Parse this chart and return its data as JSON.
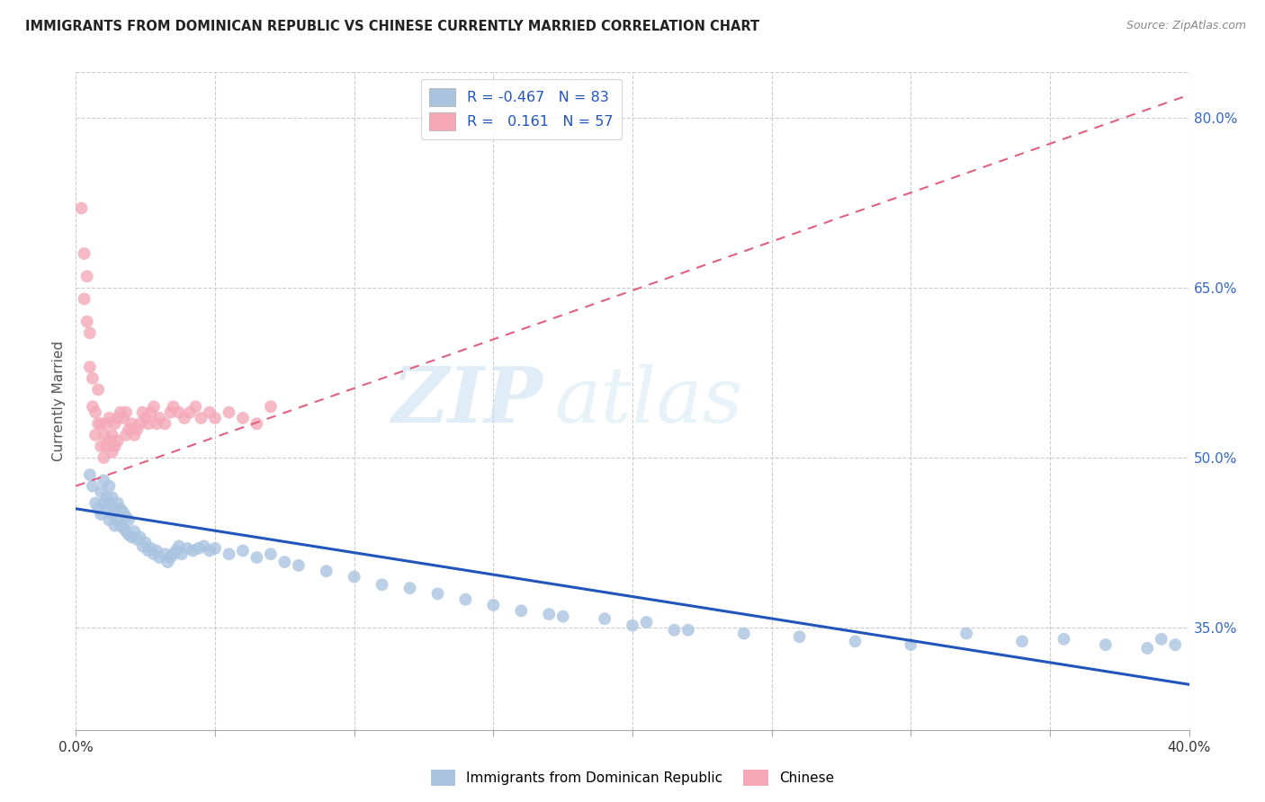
{
  "title": "IMMIGRANTS FROM DOMINICAN REPUBLIC VS CHINESE CURRENTLY MARRIED CORRELATION CHART",
  "source": "Source: ZipAtlas.com",
  "ylabel": "Currently Married",
  "right_yticks": [
    0.35,
    0.5,
    0.65,
    0.8
  ],
  "right_yticklabels": [
    "35.0%",
    "50.0%",
    "65.0%",
    "80.0%"
  ],
  "xmin": 0.0,
  "xmax": 0.4,
  "ymin": 0.26,
  "ymax": 0.84,
  "blue_R": -0.467,
  "blue_N": 83,
  "pink_R": 0.161,
  "pink_N": 57,
  "blue_color": "#aac4e0",
  "pink_color": "#f4a8b8",
  "blue_line_color": "#2255bb",
  "pink_line_color": "#e06080",
  "legend_label_blue": "Immigrants from Dominican Republic",
  "legend_label_pink": "Chinese",
  "watermark_zip": "ZIP",
  "watermark_atlas": "atlas",
  "grid_color": "#cccccc",
  "background_color": "#ffffff",
  "blue_scatter_x": [
    0.005,
    0.006,
    0.007,
    0.008,
    0.009,
    0.009,
    0.01,
    0.01,
    0.011,
    0.011,
    0.012,
    0.012,
    0.012,
    0.013,
    0.013,
    0.014,
    0.014,
    0.015,
    0.015,
    0.016,
    0.016,
    0.017,
    0.017,
    0.018,
    0.018,
    0.019,
    0.019,
    0.02,
    0.021,
    0.022,
    0.023,
    0.024,
    0.025,
    0.026,
    0.027,
    0.028,
    0.029,
    0.03,
    0.032,
    0.033,
    0.034,
    0.035,
    0.036,
    0.037,
    0.038,
    0.04,
    0.042,
    0.044,
    0.046,
    0.048,
    0.05,
    0.055,
    0.06,
    0.065,
    0.07,
    0.075,
    0.08,
    0.09,
    0.1,
    0.11,
    0.12,
    0.13,
    0.14,
    0.15,
    0.16,
    0.175,
    0.19,
    0.205,
    0.22,
    0.24,
    0.26,
    0.28,
    0.3,
    0.32,
    0.34,
    0.355,
    0.37,
    0.385,
    0.39,
    0.395,
    0.2,
    0.17,
    0.215
  ],
  "blue_scatter_y": [
    0.485,
    0.475,
    0.46,
    0.455,
    0.45,
    0.47,
    0.46,
    0.48,
    0.465,
    0.455,
    0.445,
    0.46,
    0.475,
    0.45,
    0.465,
    0.44,
    0.455,
    0.445,
    0.46,
    0.44,
    0.455,
    0.438,
    0.452,
    0.435,
    0.448,
    0.432,
    0.445,
    0.43,
    0.435,
    0.428,
    0.43,
    0.422,
    0.425,
    0.418,
    0.42,
    0.415,
    0.418,
    0.412,
    0.415,
    0.408,
    0.412,
    0.415,
    0.418,
    0.422,
    0.415,
    0.42,
    0.418,
    0.42,
    0.422,
    0.418,
    0.42,
    0.415,
    0.418,
    0.412,
    0.415,
    0.408,
    0.405,
    0.4,
    0.395,
    0.388,
    0.385,
    0.38,
    0.375,
    0.37,
    0.365,
    0.36,
    0.358,
    0.355,
    0.348,
    0.345,
    0.342,
    0.338,
    0.335,
    0.345,
    0.338,
    0.34,
    0.335,
    0.332,
    0.34,
    0.335,
    0.352,
    0.362,
    0.348
  ],
  "pink_scatter_x": [
    0.002,
    0.003,
    0.003,
    0.004,
    0.004,
    0.005,
    0.005,
    0.006,
    0.006,
    0.007,
    0.007,
    0.008,
    0.008,
    0.009,
    0.009,
    0.01,
    0.01,
    0.011,
    0.011,
    0.012,
    0.012,
    0.013,
    0.013,
    0.014,
    0.014,
    0.015,
    0.015,
    0.016,
    0.017,
    0.018,
    0.018,
    0.019,
    0.02,
    0.021,
    0.022,
    0.023,
    0.024,
    0.025,
    0.026,
    0.027,
    0.028,
    0.029,
    0.03,
    0.032,
    0.034,
    0.035,
    0.037,
    0.039,
    0.041,
    0.043,
    0.045,
    0.048,
    0.05,
    0.055,
    0.06,
    0.065,
    0.07
  ],
  "pink_scatter_y": [
    0.72,
    0.68,
    0.64,
    0.66,
    0.62,
    0.58,
    0.61,
    0.545,
    0.57,
    0.52,
    0.54,
    0.53,
    0.56,
    0.51,
    0.53,
    0.5,
    0.52,
    0.51,
    0.53,
    0.515,
    0.535,
    0.505,
    0.52,
    0.51,
    0.53,
    0.515,
    0.535,
    0.54,
    0.535,
    0.54,
    0.52,
    0.525,
    0.53,
    0.52,
    0.525,
    0.53,
    0.54,
    0.535,
    0.53,
    0.54,
    0.545,
    0.53,
    0.535,
    0.53,
    0.54,
    0.545,
    0.54,
    0.535,
    0.54,
    0.545,
    0.535,
    0.54,
    0.535,
    0.54,
    0.535,
    0.53,
    0.545
  ],
  "blue_trend_x0": 0.0,
  "blue_trend_x1": 0.4,
  "blue_trend_y0": 0.455,
  "blue_trend_y1": 0.3,
  "pink_trend_x0": 0.0,
  "pink_trend_x1": 0.4,
  "pink_trend_y0": 0.475,
  "pink_trend_y1": 0.82
}
